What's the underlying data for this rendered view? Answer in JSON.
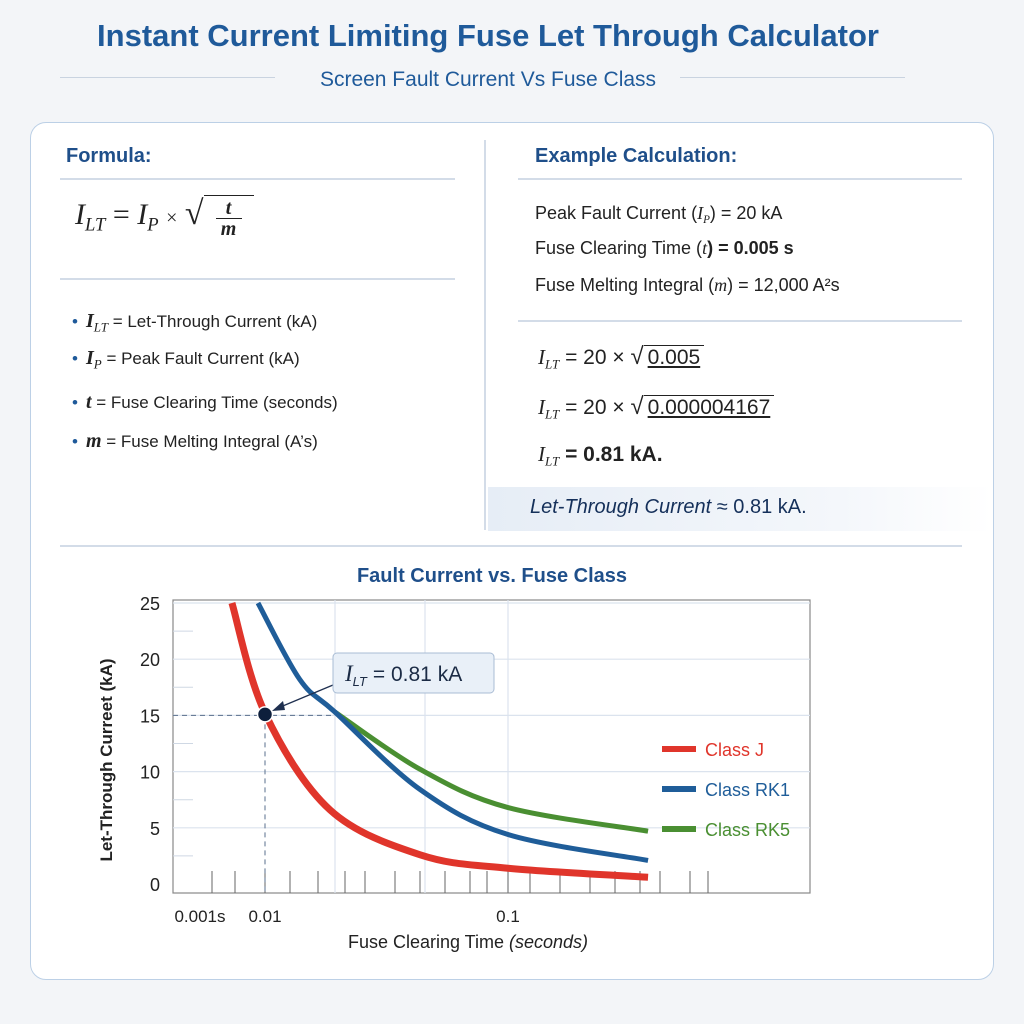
{
  "header": {
    "title": "Instant Current Limiting Fuse Let Through Calculator",
    "subtitle": "Screen Fault Current Vs Fuse Class"
  },
  "formula": {
    "heading": "Formula:",
    "lhs": "I",
    "lhs_sub": "LT",
    "ip": "I",
    "ip_sub": "P",
    "times": "×",
    "num": "t",
    "den": "m",
    "definitions": [
      {
        "sym": "I",
        "sub": "LT",
        "text": "= Let-Through Current (kA)"
      },
      {
        "sym": "I",
        "sub": "P",
        "text": "= Peak Fault Current (kA)"
      },
      {
        "sym": "t",
        "sub": "",
        "text": "= Fuse Clearing Time (seconds)"
      },
      {
        "sym": "m",
        "sub": "",
        "text": "= Fuse Melting Integral (A’s)"
      }
    ]
  },
  "example": {
    "heading": "Example Calculation:",
    "inputs": [
      {
        "label": "Peak Fault Current (",
        "sym": "I",
        "sub": "P",
        "value": ") = 20 kA"
      },
      {
        "label": "Fuse Clearing Time (",
        "sym": "t",
        "sub": "",
        "value": ") = 0.005 s"
      },
      {
        "label": "Fuse Melting Integral (",
        "sym": "m",
        "sub": "",
        "value": ") = 12,000 A²s"
      }
    ],
    "steps": [
      {
        "prefix": "= 20 ×",
        "radicand": "0.005"
      },
      {
        "prefix": "= 20 ×",
        "radicand": "0.000004167"
      },
      {
        "prefix": "= 0.81 kA.",
        "radicand": ""
      }
    ],
    "result_label": "Let-Through Current",
    "result_value": "≈ 0.81 kA."
  },
  "chart_data": {
    "type": "line",
    "title": "Fault Current vs. Fuse Class",
    "xlabel": "Fuse Clearing Time",
    "xlabel_unit": "(seconds)",
    "ylabel": "Let-Through Curreet (kA)",
    "x_scale": "log",
    "x_tick_labels": [
      "0.001s",
      "0.01",
      "0.1"
    ],
    "x_ticks": [
      0.001,
      0.01,
      0.1
    ],
    "y_ticks": [
      0,
      5,
      10,
      15,
      20,
      25
    ],
    "ylim": [
      0,
      25
    ],
    "grid": true,
    "legend_position": "right",
    "series": [
      {
        "name": "Class J",
        "color": "#e0352b",
        "x": [
          0.0031,
          0.01,
          0.0185,
          0.0435,
          0.1,
          0.377
        ],
        "y": [
          25,
          15.2,
          6.6,
          2.6,
          1.4,
          0.6
        ]
      },
      {
        "name": "Class RK1",
        "color": "#1f5d99",
        "x": [
          0.0078,
          0.0139,
          0.0194,
          0.0435,
          0.1,
          0.377
        ],
        "y": [
          25,
          18.2,
          15.3,
          8.4,
          4.4,
          2.1
        ]
      },
      {
        "name": "Class RK5",
        "color": "#4a8f32",
        "x": [
          0.0194,
          0.0435,
          0.1,
          0.377
        ],
        "y": [
          15.3,
          10.2,
          6.8,
          4.7
        ]
      }
    ],
    "marker": {
      "x": 0.01,
      "y": 15
    },
    "annotation": {
      "sym": "I",
      "sub": "LT",
      "text": "= 0.81 kA"
    }
  }
}
